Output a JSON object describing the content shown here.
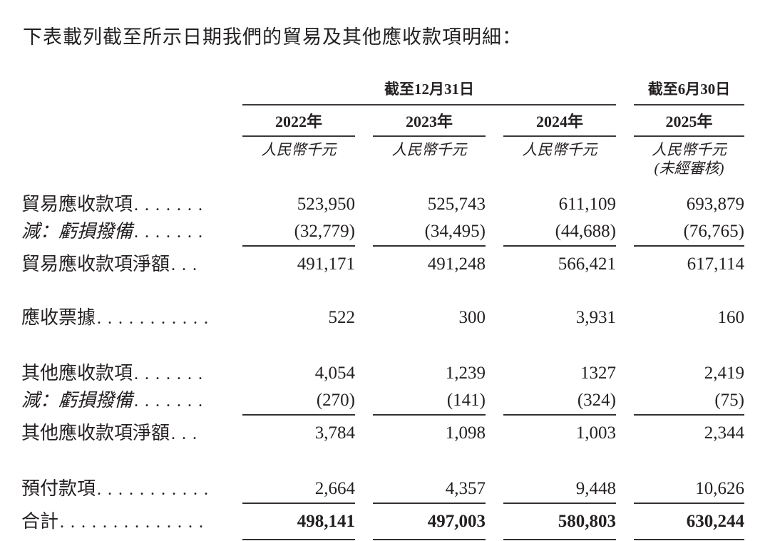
{
  "intro": "下表載列截至所示日期我們的貿易及其他應收款項明細：",
  "table": {
    "period_dec31": "截至12月31日",
    "period_jun30": "截至6月30日",
    "years": [
      "2022年",
      "2023年",
      "2024年",
      "2025年"
    ],
    "unit_label": "人民幣千元",
    "unaudited_note": "(未經審核)",
    "rows": [
      {
        "label": "貿易應收款項",
        "dots": ".......",
        "values": [
          "523,950",
          "525,743",
          "611,109",
          "693,879"
        ]
      },
      {
        "label": "減：虧損撥備",
        "dots": ".......",
        "values": [
          "(32,779)",
          "(34,495)",
          "(44,688)",
          "(76,765)"
        ]
      },
      {
        "label": "貿易應收款項淨額",
        "dots": "...",
        "values": [
          "491,171",
          "491,248",
          "566,421",
          "617,114"
        ]
      },
      {
        "label": "應收票據",
        "dots": "...........",
        "values": [
          "522",
          "300",
          "3,931",
          "160"
        ]
      },
      {
        "label": "其他應收款項",
        "dots": ".......",
        "values": [
          "4,054",
          "1,239",
          "1327",
          "2,419"
        ]
      },
      {
        "label": "減：虧損撥備",
        "dots": ".......",
        "values": [
          "(270)",
          "(141)",
          "(324)",
          "(75)"
        ]
      },
      {
        "label": "其他應收款項淨額",
        "dots": "...",
        "values": [
          "3,784",
          "1,098",
          "1,003",
          "2,344"
        ]
      },
      {
        "label": "預付款項",
        "dots": "...........",
        "values": [
          "2,664",
          "4,357",
          "9,448",
          "10,626"
        ]
      },
      {
        "label": "合計",
        "dots": "..............",
        "values": [
          "498,141",
          "497,003",
          "580,803",
          "630,244"
        ]
      }
    ]
  },
  "colors": {
    "text": "#242021",
    "rule": "#332f30",
    "background": "#ffffff"
  }
}
